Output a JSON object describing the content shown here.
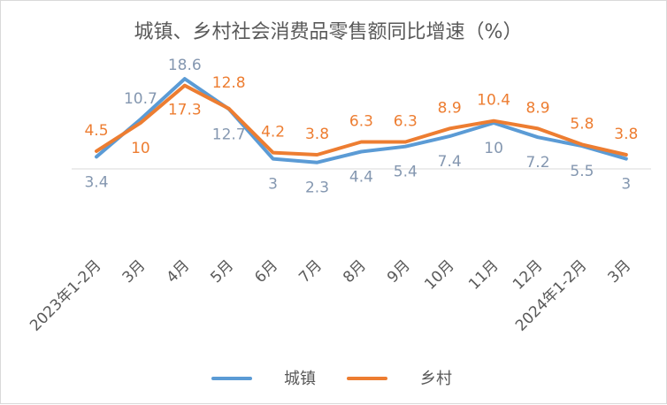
{
  "chart_data": {
    "type": "line",
    "title": "城镇、乡村社会消费品零售额同比增速（%）",
    "categories": [
      "2023年1-2月",
      "3月",
      "4月",
      "5月",
      "6月",
      "7月",
      "8月",
      "9月",
      "10月",
      "11月",
      "12月",
      "2024年1-2月",
      "3月"
    ],
    "series": [
      {
        "name": "城镇",
        "color": "#5b9bd5",
        "label_color": "#8497b0",
        "values": [
          3.4,
          10.7,
          18.6,
          12.7,
          3,
          2.3,
          4.4,
          5.4,
          7.4,
          10,
          7.2,
          5.5,
          3
        ],
        "labels": [
          "3.4",
          "10.7",
          "18.6",
          "12.7",
          "3",
          "2.3",
          "4.4",
          "5.4",
          "7.4",
          "10",
          "7.2",
          "5.5",
          "3"
        ]
      },
      {
        "name": "乡村",
        "color": "#ed7d31",
        "label_color": "#ed7d31",
        "values": [
          4.5,
          10,
          17.3,
          12.8,
          4.2,
          3.8,
          6.3,
          6.3,
          8.9,
          10.4,
          8.9,
          5.8,
          3.8
        ],
        "labels": [
          "4.5",
          "10",
          "17.3",
          "12.8",
          "4.2",
          "3.8",
          "6.3",
          "6.3",
          "8.9",
          "10.4",
          "8.9",
          "5.8",
          "3.8"
        ]
      }
    ],
    "legend": "bottom",
    "grid": false
  }
}
